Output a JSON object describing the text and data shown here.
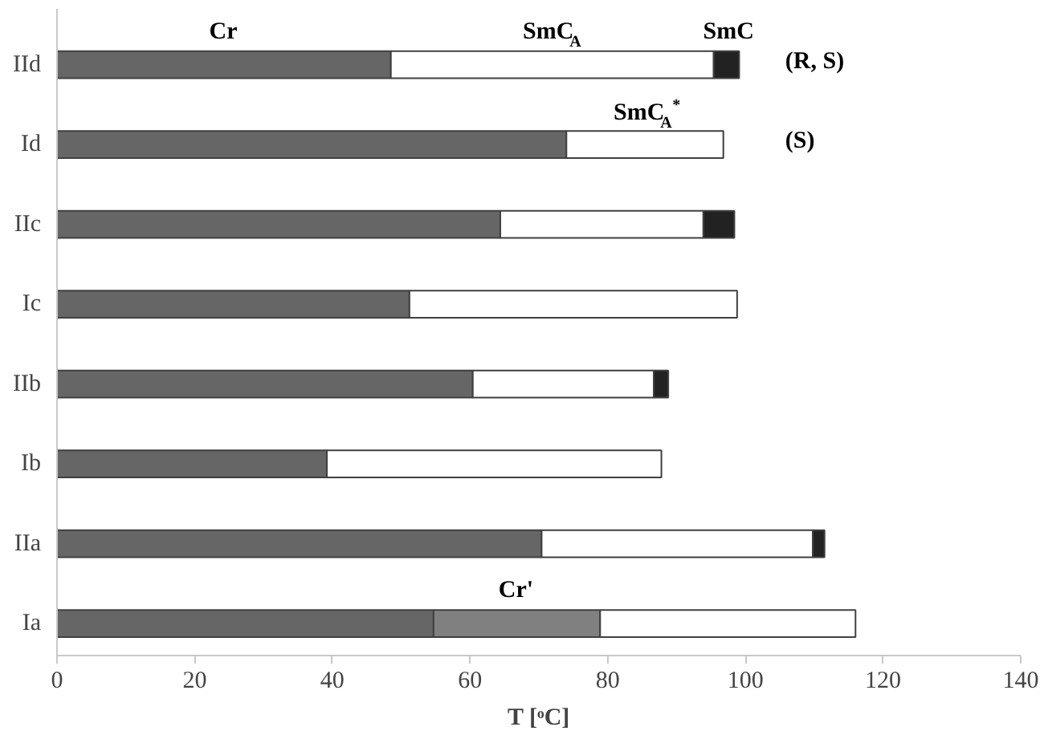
{
  "chart_data": {
    "type": "bar",
    "orientation": "horizontal",
    "stacked": true,
    "categories": [
      "IId",
      "Id",
      "IIc",
      "Ic",
      "IIb",
      "Ib",
      "IIa",
      "Ia"
    ],
    "series": [
      {
        "name": "Cr",
        "color": "#666666",
        "values": [
          48.5,
          74.0,
          64.4,
          51.2,
          60.4,
          39.2,
          70.4,
          54.7
        ]
      },
      {
        "name": "Cr'",
        "color": "#808080",
        "values": [
          null,
          null,
          null,
          null,
          null,
          null,
          null,
          24.2
        ]
      },
      {
        "name": "SmC$_{A}$",
        "color": "#ffffff",
        "values": [
          46.9,
          22.8,
          29.5,
          47.6,
          26.3,
          48.6,
          39.4,
          37.1
        ]
      },
      {
        "name": "SmC",
        "color": "#222222",
        "values": [
          3.7,
          null,
          4.5,
          null,
          2.1,
          null,
          1.7,
          null
        ]
      }
    ],
    "xlabel": "T [ᵒC]",
    "xlim": [
      0,
      140
    ],
    "xticks": [
      0,
      20,
      40,
      60,
      80,
      100,
      120,
      140
    ],
    "annotations": [
      "SmC$_{A}$$^{*}$",
      "(R, S)",
      "(S)"
    ],
    "grid": false
  }
}
